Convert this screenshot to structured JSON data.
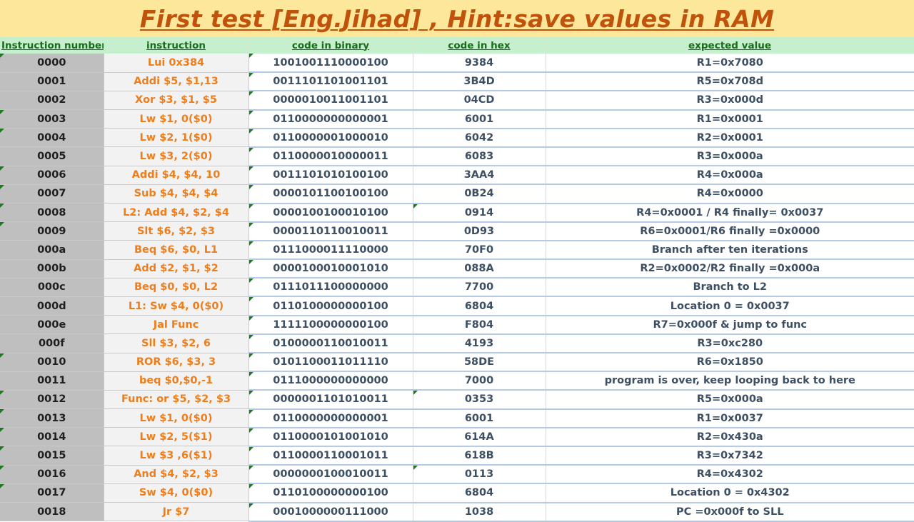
{
  "title": "First test [Eng.Jihad] , Hint:save values in RAM",
  "headers": {
    "number": "Instruction number",
    "instruction": "instruction",
    "binary": "code in binary",
    "hex": "code in hex",
    "expected": "expected value"
  },
  "colors": {
    "title_bg": "#fde79a",
    "title_text": "#c0520c",
    "header_bg": "#c6efce",
    "header_text": "#1a6b1a",
    "instruction_text": "#ef7d1a",
    "number_bg": "#bfbfbf",
    "value_text": "#3d4f63"
  },
  "rows": [
    {
      "num": "0000",
      "instr": "Lui 0x384",
      "bin": "1001001110000100",
      "hex": "9384",
      "exp": "R1=0x7080"
    },
    {
      "num": "0001",
      "instr": "Addi $5, $1,13",
      "bin": "0011101101001101",
      "hex": "3B4D",
      "exp": "R5=0x708d"
    },
    {
      "num": "0002",
      "instr": "Xor $3, $1, $5",
      "bin": "0000010011001101",
      "hex": "04CD",
      "exp": "R3=0x000d"
    },
    {
      "num": "0003",
      "instr": "Lw $1, 0($0)",
      "bin": "0110000000000001",
      "hex": "6001",
      "exp": "R1=0x0001"
    },
    {
      "num": "0004",
      "instr": "Lw $2, 1($0)",
      "bin": "0110000001000010",
      "hex": "6042",
      "exp": "R2=0x0001"
    },
    {
      "num": "0005",
      "instr": "Lw $3, 2($0)",
      "bin": "0110000010000011",
      "hex": "6083",
      "exp": "R3=0x000a"
    },
    {
      "num": "0006",
      "instr": "Addi $4, $4, 10",
      "bin": "0011101010100100",
      "hex": "3AA4",
      "exp": "R4=0x000a"
    },
    {
      "num": "0007",
      "instr": "Sub $4, $4, $4",
      "bin": "0000101100100100",
      "hex": "0B24",
      "exp": "R4=0x0000"
    },
    {
      "num": "0008",
      "instr": "L2: Add $4, $2, $4",
      "bin": "0000100100010100",
      "hex": "0914",
      "exp": "R4=0x0001 / R4 finally= 0x0037"
    },
    {
      "num": "0009",
      "instr": "Slt $6, $2, $3",
      "bin": "0000110110010011",
      "hex": "0D93",
      "exp": "R6=0x0001/R6 finally =0x0000"
    },
    {
      "num": "000a",
      "instr": "Beq $6, $0, L1",
      "bin": "0111000011110000",
      "hex": "70F0",
      "exp": "Branch after ten iterations"
    },
    {
      "num": "000b",
      "instr": "Add $2, $1, $2",
      "bin": "0000100010001010",
      "hex": "088A",
      "exp": "R2=0x0002/R2 finally =0x000a"
    },
    {
      "num": "000c",
      "instr": "Beq $0, $0, L2",
      "bin": "0111011100000000",
      "hex": "7700",
      "exp": "Branch to L2"
    },
    {
      "num": "000d",
      "instr": "L1: Sw $4, 0($0)",
      "bin": "0110100000000100",
      "hex": "6804",
      "exp": "Location 0 = 0x0037"
    },
    {
      "num": "000e",
      "instr": "Jal Func",
      "bin": "1111100000000100",
      "hex": "F804",
      "exp": "R7=0x000f & jump to func"
    },
    {
      "num": "000f",
      "instr": "Sll $3, $2, 6",
      "bin": "0100000110010011",
      "hex": "4193",
      "exp": "R3=0xc280"
    },
    {
      "num": "0010",
      "instr": "ROR $6, $3, 3",
      "bin": "0101100011011110",
      "hex": "58DE",
      "exp": "R6=0x1850"
    },
    {
      "num": "0011",
      "instr": "beq $0,$0,-1",
      "bin": "0111000000000000",
      "hex": "7000",
      "exp": "program is over, keep looping back to here"
    },
    {
      "num": "0012",
      "instr": "Func: or $5, $2, $3",
      "bin": "0000001101010011",
      "hex": "0353",
      "exp": "R5=0x000a"
    },
    {
      "num": "0013",
      "instr": "Lw $1, 0($0)",
      "bin": "0110000000000001",
      "hex": "6001",
      "exp": "R1=0x0037"
    },
    {
      "num": "0014",
      "instr": "Lw $2, 5($1)",
      "bin": "0110000101001010",
      "hex": "614A",
      "exp": "R2=0x430a"
    },
    {
      "num": "0015",
      "instr": "Lw $3 ,6($1)",
      "bin": "0110000110001011",
      "hex": "618B",
      "exp": "R3=0x7342"
    },
    {
      "num": "0016",
      "instr": "And $4, $2, $3",
      "bin": "0000000100010011",
      "hex": "0113",
      "exp": "R4=0x4302"
    },
    {
      "num": "0017",
      "instr": "Sw $4, 0($0)",
      "bin": "0110100000000100",
      "hex": "6804",
      "exp": "Location 0 = 0x4302"
    },
    {
      "num": "0018",
      "instr": "Jr $7",
      "bin": "0001000000111000",
      "hex": "1038",
      "exp": "PC =0x000f to SLL"
    }
  ]
}
